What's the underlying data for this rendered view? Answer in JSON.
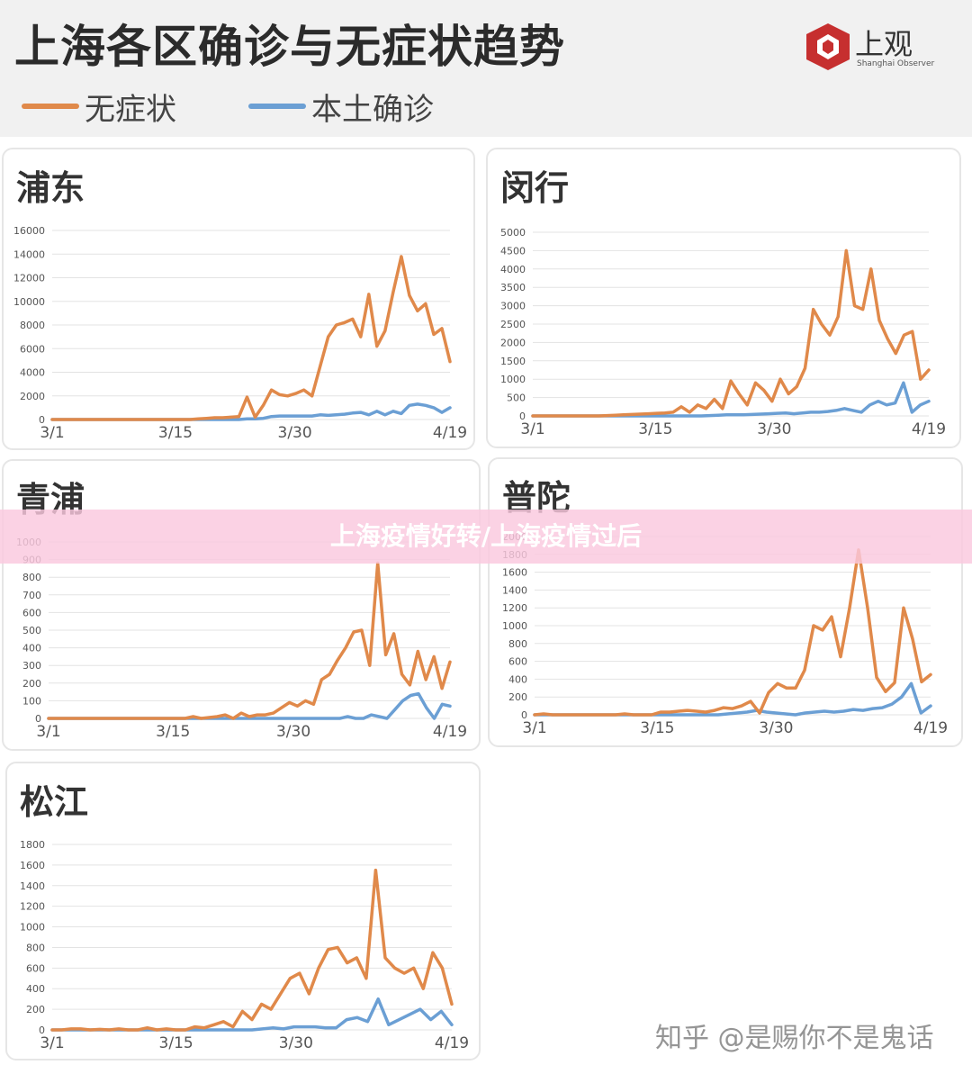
{
  "header": {
    "title": "上海各区确诊与无症状趋势",
    "legend": [
      {
        "name": "无症状",
        "color": "#e0894a"
      },
      {
        "name": "本土确诊",
        "color": "#6b9fd4"
      }
    ],
    "logo_text": "上观",
    "logo_sub": "Shanghai Observer"
  },
  "banner": {
    "text": "上海疫情好转/上海疫情过后"
  },
  "watermark": {
    "text": "知乎 @是赐你不是鬼话"
  },
  "chart_data": [
    {
      "type": "line",
      "title": "浦东",
      "xticks": [
        "3/1",
        "3/15",
        "3/30",
        "4/19"
      ],
      "yticks": [
        "0",
        "2000",
        "4000",
        "6000",
        "8000",
        "10000",
        "12000",
        "14000",
        "16000"
      ],
      "ylim": [
        0,
        16000
      ],
      "series": [
        {
          "name": "无症状",
          "color": "#e0894a",
          "values": [
            0,
            0,
            0,
            0,
            0,
            0,
            0,
            0,
            0,
            0,
            0,
            0,
            0,
            0,
            0,
            0,
            0,
            0,
            50,
            100,
            150,
            150,
            200,
            250,
            1900,
            200,
            1200,
            2500,
            2100,
            2000,
            2200,
            2500,
            2000,
            4500,
            7000,
            8000,
            8200,
            8500,
            7000,
            10600,
            6200,
            7500,
            10800,
            13800,
            10500,
            9200,
            9800,
            7200,
            7700,
            4900
          ]
        },
        {
          "name": "本土确诊",
          "color": "#6b9fd4",
          "values": [
            0,
            0,
            0,
            0,
            0,
            0,
            0,
            0,
            0,
            0,
            0,
            0,
            0,
            0,
            0,
            0,
            0,
            0,
            0,
            0,
            0,
            0,
            0,
            0,
            50,
            50,
            100,
            250,
            300,
            300,
            300,
            300,
            300,
            400,
            350,
            400,
            450,
            550,
            600,
            400,
            700,
            400,
            700,
            500,
            1200,
            1300,
            1200,
            1000,
            600,
            1000
          ]
        }
      ]
    },
    {
      "type": "line",
      "title": "闵行",
      "xticks": [
        "3/1",
        "3/15",
        "3/30",
        "4/19"
      ],
      "yticks": [
        "0",
        "500",
        "1000",
        "1500",
        "2000",
        "2500",
        "3000",
        "3500",
        "4000",
        "4500",
        "5000"
      ],
      "ylim": [
        0,
        5000
      ],
      "series": [
        {
          "name": "无症状",
          "color": "#e0894a",
          "values": [
            0,
            0,
            0,
            0,
            0,
            0,
            0,
            0,
            0,
            10,
            20,
            30,
            40,
            50,
            60,
            70,
            80,
            100,
            250,
            100,
            300,
            200,
            450,
            200,
            950,
            600,
            300,
            900,
            700,
            400,
            1000,
            600,
            800,
            1300,
            2900,
            2500,
            2200,
            2700,
            4500,
            3000,
            2900,
            4000,
            2600,
            2100,
            1700,
            2200,
            2300,
            1000,
            1250
          ]
        },
        {
          "name": "本土确诊",
          "color": "#6b9fd4",
          "values": [
            0,
            0,
            0,
            0,
            0,
            0,
            0,
            0,
            0,
            0,
            0,
            0,
            0,
            0,
            0,
            0,
            0,
            0,
            0,
            0,
            0,
            10,
            20,
            30,
            30,
            30,
            40,
            50,
            60,
            70,
            80,
            60,
            80,
            100,
            100,
            120,
            150,
            200,
            150,
            100,
            300,
            400,
            300,
            350,
            900,
            100,
            300,
            400
          ]
        }
      ]
    },
    {
      "type": "line",
      "title": "青浦",
      "xticks": [
        "3/1",
        "3/15",
        "3/30",
        "4/19"
      ],
      "yticks": [
        "0",
        "100",
        "200",
        "300",
        "400",
        "500",
        "600",
        "700",
        "800",
        "900",
        "1000"
      ],
      "ylim": [
        0,
        1000
      ],
      "series": [
        {
          "name": "无症状",
          "color": "#e0894a",
          "values": [
            0,
            0,
            0,
            0,
            0,
            0,
            0,
            0,
            0,
            0,
            0,
            0,
            0,
            0,
            0,
            0,
            0,
            0,
            10,
            0,
            5,
            10,
            20,
            0,
            30,
            10,
            20,
            20,
            30,
            60,
            90,
            70,
            100,
            80,
            220,
            250,
            330,
            400,
            490,
            500,
            300,
            880,
            360,
            480,
            250,
            190,
            380,
            220,
            350,
            170,
            320
          ]
        },
        {
          "name": "本土确诊",
          "color": "#6b9fd4",
          "values": [
            0,
            0,
            0,
            0,
            0,
            0,
            0,
            0,
            0,
            0,
            0,
            0,
            0,
            0,
            0,
            0,
            0,
            0,
            0,
            0,
            0,
            0,
            0,
            0,
            0,
            0,
            0,
            0,
            0,
            0,
            0,
            0,
            0,
            0,
            0,
            0,
            0,
            0,
            10,
            0,
            0,
            20,
            10,
            0,
            50,
            100,
            130,
            140,
            60,
            0,
            80,
            70
          ]
        }
      ]
    },
    {
      "type": "line",
      "title": "普陀",
      "xticks": [
        "3/1",
        "3/15",
        "3/30",
        "4/19"
      ],
      "yticks": [
        "0",
        "200",
        "400",
        "600",
        "800",
        "1000",
        "1200",
        "1400",
        "1600",
        "1800",
        "2000"
      ],
      "ylim": [
        0,
        2000
      ],
      "series": [
        {
          "name": "无症状",
          "color": "#e0894a",
          "values": [
            0,
            10,
            0,
            0,
            0,
            0,
            0,
            0,
            0,
            0,
            10,
            0,
            0,
            0,
            30,
            30,
            40,
            50,
            40,
            30,
            50,
            80,
            70,
            100,
            150,
            20,
            250,
            350,
            300,
            300,
            500,
            1000,
            950,
            1100,
            650,
            1200,
            1850,
            1200,
            420,
            260,
            360,
            1200,
            850,
            370,
            450
          ]
        },
        {
          "name": "本土确诊",
          "color": "#6b9fd4",
          "values": [
            0,
            0,
            0,
            0,
            0,
            0,
            0,
            0,
            0,
            0,
            0,
            0,
            0,
            0,
            0,
            0,
            0,
            0,
            0,
            0,
            10,
            20,
            30,
            50,
            30,
            20,
            10,
            0,
            20,
            30,
            40,
            30,
            40,
            60,
            50,
            70,
            80,
            120,
            200,
            350,
            20,
            100
          ]
        }
      ]
    },
    {
      "type": "line",
      "title": "松江",
      "xticks": [
        "3/1",
        "3/15",
        "3/30",
        "4/19"
      ],
      "yticks": [
        "0",
        "200",
        "400",
        "600",
        "800",
        "1000",
        "1200",
        "1400",
        "1600",
        "1800"
      ],
      "ylim": [
        0,
        1800
      ],
      "series": [
        {
          "name": "无症状",
          "color": "#e0894a",
          "values": [
            0,
            0,
            10,
            10,
            0,
            5,
            0,
            10,
            0,
            0,
            20,
            0,
            10,
            0,
            0,
            30,
            20,
            50,
            80,
            30,
            180,
            100,
            250,
            200,
            350,
            500,
            550,
            350,
            600,
            780,
            800,
            650,
            700,
            500,
            1550,
            700,
            600,
            550,
            600,
            400,
            750,
            600,
            250
          ]
        },
        {
          "name": "本土确诊",
          "color": "#6b9fd4",
          "values": [
            0,
            0,
            0,
            0,
            0,
            0,
            0,
            0,
            0,
            0,
            0,
            0,
            0,
            0,
            0,
            0,
            0,
            0,
            0,
            0,
            10,
            20,
            10,
            30,
            30,
            30,
            20,
            20,
            100,
            120,
            80,
            300,
            50,
            100,
            150,
            200,
            100,
            180,
            50
          ]
        }
      ]
    }
  ]
}
